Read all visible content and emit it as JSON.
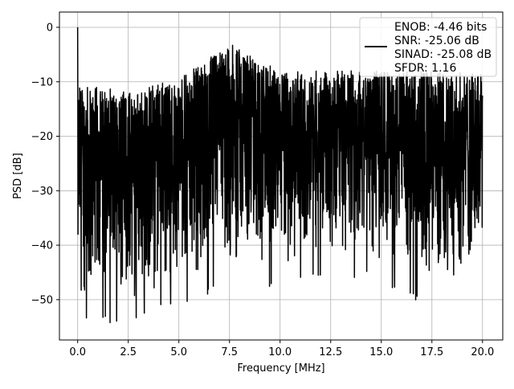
{
  "chart_data": {
    "type": "line",
    "xlabel": "Frequency [MHz]",
    "ylabel": "PSD [dB]",
    "xlim": [
      -0.9,
      21.0
    ],
    "ylim": [
      -57.4,
      2.8
    ],
    "x_ticks": [
      0.0,
      2.5,
      5.0,
      7.5,
      10.0,
      12.5,
      15.0,
      17.5,
      20.0
    ],
    "x_tick_labels": [
      "0.0",
      "2.5",
      "5.0",
      "7.5",
      "10.0",
      "12.5",
      "15.0",
      "17.5",
      "20.0"
    ],
    "y_ticks": [
      0,
      -10,
      -20,
      -30,
      -40,
      -50
    ],
    "y_tick_labels": [
      "0",
      "−10",
      "−20",
      "−30",
      "−40",
      "−50"
    ],
    "grid": true,
    "legend_position": "top-right",
    "series": [
      {
        "color": "#000000",
        "x_range": [
          0.0,
          20.0
        ],
        "peak": {
          "x": 0.0,
          "y": 0.0
        },
        "approx_envelope": {
          "x": [
            0.0,
            2.5,
            5.0,
            7.5,
            10.0,
            12.5,
            15.0,
            17.5,
            20.0
          ],
          "upper": [
            -12,
            -13,
            -11,
            -4.5,
            -9.5,
            -9.5,
            -9.5,
            -9.5,
            -10
          ],
          "lower": [
            -54.5,
            -55,
            -51,
            -48.5,
            -48,
            -46,
            -47,
            -53,
            -48.5
          ]
        }
      }
    ],
    "legend": {
      "lines": [
        "ENOB: -4.46 bits",
        "SNR: -25.06 dB",
        "SINAD: -25.08 dB",
        "SFDR: 1.16"
      ]
    }
  }
}
